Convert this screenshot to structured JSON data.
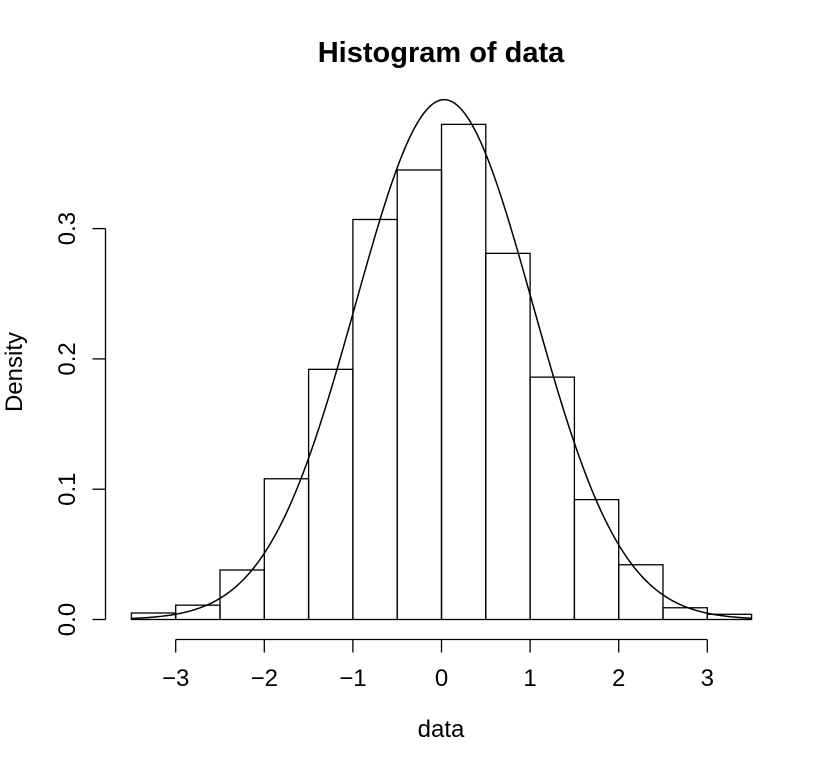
{
  "chart_data": {
    "type": "bar",
    "title": "Histogram of data",
    "xlabel": "data",
    "ylabel": "Density",
    "xlim": [
      -3.5,
      3.5
    ],
    "ylim": [
      0,
      0.4
    ],
    "x_ticks": [
      -3,
      -2,
      -1,
      0,
      1,
      2,
      3
    ],
    "x_tick_labels": [
      "−3",
      "−2",
      "−1",
      "0",
      "1",
      "2",
      "3"
    ],
    "y_ticks": [
      0.0,
      0.1,
      0.2,
      0.3
    ],
    "y_tick_labels": [
      "0.0",
      "0.1",
      "0.2",
      "0.3"
    ],
    "bins": [
      {
        "start": -3.5,
        "end": -3.0,
        "density": 0.005
      },
      {
        "start": -3.0,
        "end": -2.5,
        "density": 0.011
      },
      {
        "start": -2.5,
        "end": -2.0,
        "density": 0.038
      },
      {
        "start": -2.0,
        "end": -1.5,
        "density": 0.108
      },
      {
        "start": -1.5,
        "end": -1.0,
        "density": 0.192
      },
      {
        "start": -1.0,
        "end": -0.5,
        "density": 0.307
      },
      {
        "start": -0.5,
        "end": 0.0,
        "density": 0.345
      },
      {
        "start": 0.0,
        "end": 0.5,
        "density": 0.38
      },
      {
        "start": 0.5,
        "end": 1.0,
        "density": 0.281
      },
      {
        "start": 1.0,
        "end": 1.5,
        "density": 0.186
      },
      {
        "start": 1.5,
        "end": 2.0,
        "density": 0.092
      },
      {
        "start": 2.0,
        "end": 2.5,
        "density": 0.042
      },
      {
        "start": 2.5,
        "end": 3.0,
        "density": 0.009
      },
      {
        "start": 3.0,
        "end": 3.5,
        "density": 0.004
      }
    ],
    "density_curve": {
      "type": "normal",
      "mean": 0.03,
      "sd": 1.0
    },
    "grid": false,
    "legend": "none"
  }
}
